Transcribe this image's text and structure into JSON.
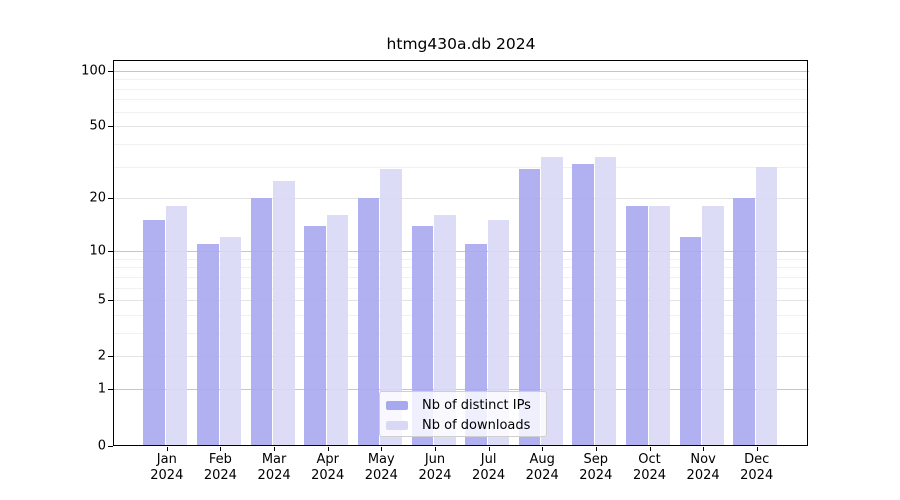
{
  "title": "htmg430a.db 2024",
  "chart_data": {
    "type": "bar",
    "title": "htmg430a.db 2024",
    "categories": [
      "Jan",
      "Feb",
      "Mar",
      "Apr",
      "May",
      "Jun",
      "Jul",
      "Aug",
      "Sep",
      "Oct",
      "Nov",
      "Dec"
    ],
    "x_year_label": "2024",
    "series": [
      {
        "name": "Nb of distinct IPs",
        "color": "#a8a8f1",
        "values": [
          15,
          11,
          20,
          14,
          20,
          14,
          11,
          29,
          31,
          18,
          12,
          20
        ]
      },
      {
        "name": "Nb of downloads",
        "color": "#d8d8f6",
        "values": [
          18,
          12,
          25,
          16,
          29,
          16,
          15,
          34,
          34,
          18,
          18,
          30
        ]
      }
    ],
    "y_scale": "log1p",
    "y_ticks": [
      0,
      1,
      2,
      5,
      10,
      20,
      50,
      100
    ],
    "y_decade_ticks": [
      1,
      10,
      100
    ],
    "y_minor_gridlines": [
      3,
      4,
      6,
      7,
      8,
      9,
      30,
      40,
      60,
      70,
      80,
      90
    ],
    "ylim": [
      0,
      114
    ],
    "grid": true,
    "legend_position": "lower center",
    "background_color": "#ffffff",
    "axis_color": "#000000"
  }
}
